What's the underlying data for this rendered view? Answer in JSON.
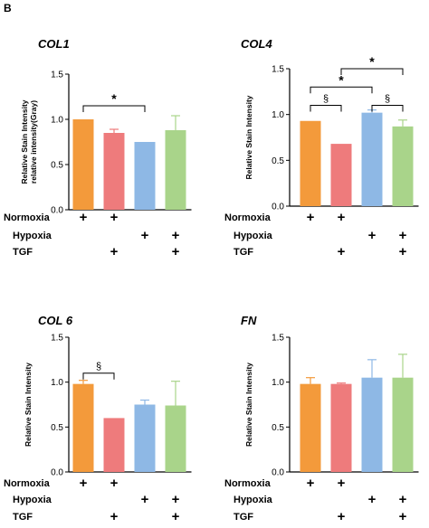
{
  "panel_letter": "B",
  "colors": {
    "normoxia": "#F39A3B",
    "normoxia_tgf": "#EE7B7C",
    "hypoxia": "#8EB8E5",
    "hypoxia_tgf": "#A9D48A",
    "axis": "#000000"
  },
  "chart_data": [
    {
      "type": "bar",
      "title": "COL1",
      "ylabel": [
        "Relative Stain Intensity",
        "relative intensity(Gray)"
      ],
      "ylim": [
        0,
        1.5
      ],
      "yticks": [
        "0.0",
        "0.5",
        "1.0",
        "1.5"
      ],
      "categories": [
        "Normoxia",
        "Normoxia + TGF",
        "Hypoxia",
        "Hypoxia + TGF"
      ],
      "values": [
        1.0,
        0.85,
        0.75,
        0.88
      ],
      "errors": [
        0.0,
        0.04,
        0.0,
        0.16
      ],
      "significance": [
        {
          "from": 0,
          "to": 2,
          "label": "*",
          "y": 1.15
        }
      ]
    },
    {
      "type": "bar",
      "title": "COL4",
      "ylabel": [
        "Relative Stain Intensity"
      ],
      "ylim": [
        0,
        1.5
      ],
      "yticks": [
        "0.0",
        "0.5",
        "1.0",
        "1.5"
      ],
      "categories": [
        "Normoxia",
        "Normoxia + TGF",
        "Hypoxia",
        "Hypoxia + TGF"
      ],
      "values": [
        0.93,
        0.68,
        1.02,
        0.87
      ],
      "errors": [
        0.0,
        0.0,
        0.03,
        0.07
      ],
      "significance": [
        {
          "from": 0,
          "to": 1,
          "label": "§",
          "y": 1.1
        },
        {
          "from": 2,
          "to": 3,
          "label": "§",
          "y": 1.1
        },
        {
          "from": 0,
          "to": 2,
          "label": "*",
          "y": 1.3
        },
        {
          "from": 1,
          "to": 3,
          "label": "*",
          "y": 1.5
        }
      ]
    },
    {
      "type": "bar",
      "title": "COL 6",
      "ylabel": [
        "Relative Stain Intensity"
      ],
      "ylim": [
        0,
        1.5
      ],
      "yticks": [
        "0.0",
        "0.5",
        "1.0",
        "1.5"
      ],
      "categories": [
        "Normoxia",
        "Normoxia + TGF",
        "Hypoxia",
        "Hypoxia + TGF"
      ],
      "values": [
        0.98,
        0.6,
        0.75,
        0.74
      ],
      "errors": [
        0.04,
        0.0,
        0.05,
        0.27
      ],
      "significance": [
        {
          "from": 0,
          "to": 1,
          "label": "§",
          "y": 1.1
        }
      ]
    },
    {
      "type": "bar",
      "title": "FN",
      "ylabel": [
        "Relative Stain Intensity"
      ],
      "ylim": [
        0,
        1.5
      ],
      "yticks": [
        "0.0",
        "0.5",
        "1.0",
        "1.5"
      ],
      "categories": [
        "Normoxia",
        "Normoxia + TGF",
        "Hypoxia",
        "Hypoxia + TGF"
      ],
      "values": [
        0.98,
        0.98,
        1.05,
        1.05
      ],
      "errors": [
        0.07,
        0.01,
        0.2,
        0.26
      ],
      "significance": []
    }
  ],
  "conditions": {
    "labels": [
      "Normoxia",
      "Hypoxia",
      "TGF"
    ],
    "plus_sign": "+",
    "matrix": [
      [
        true,
        true,
        false,
        false
      ],
      [
        false,
        false,
        true,
        true
      ],
      [
        false,
        true,
        false,
        true
      ]
    ]
  }
}
